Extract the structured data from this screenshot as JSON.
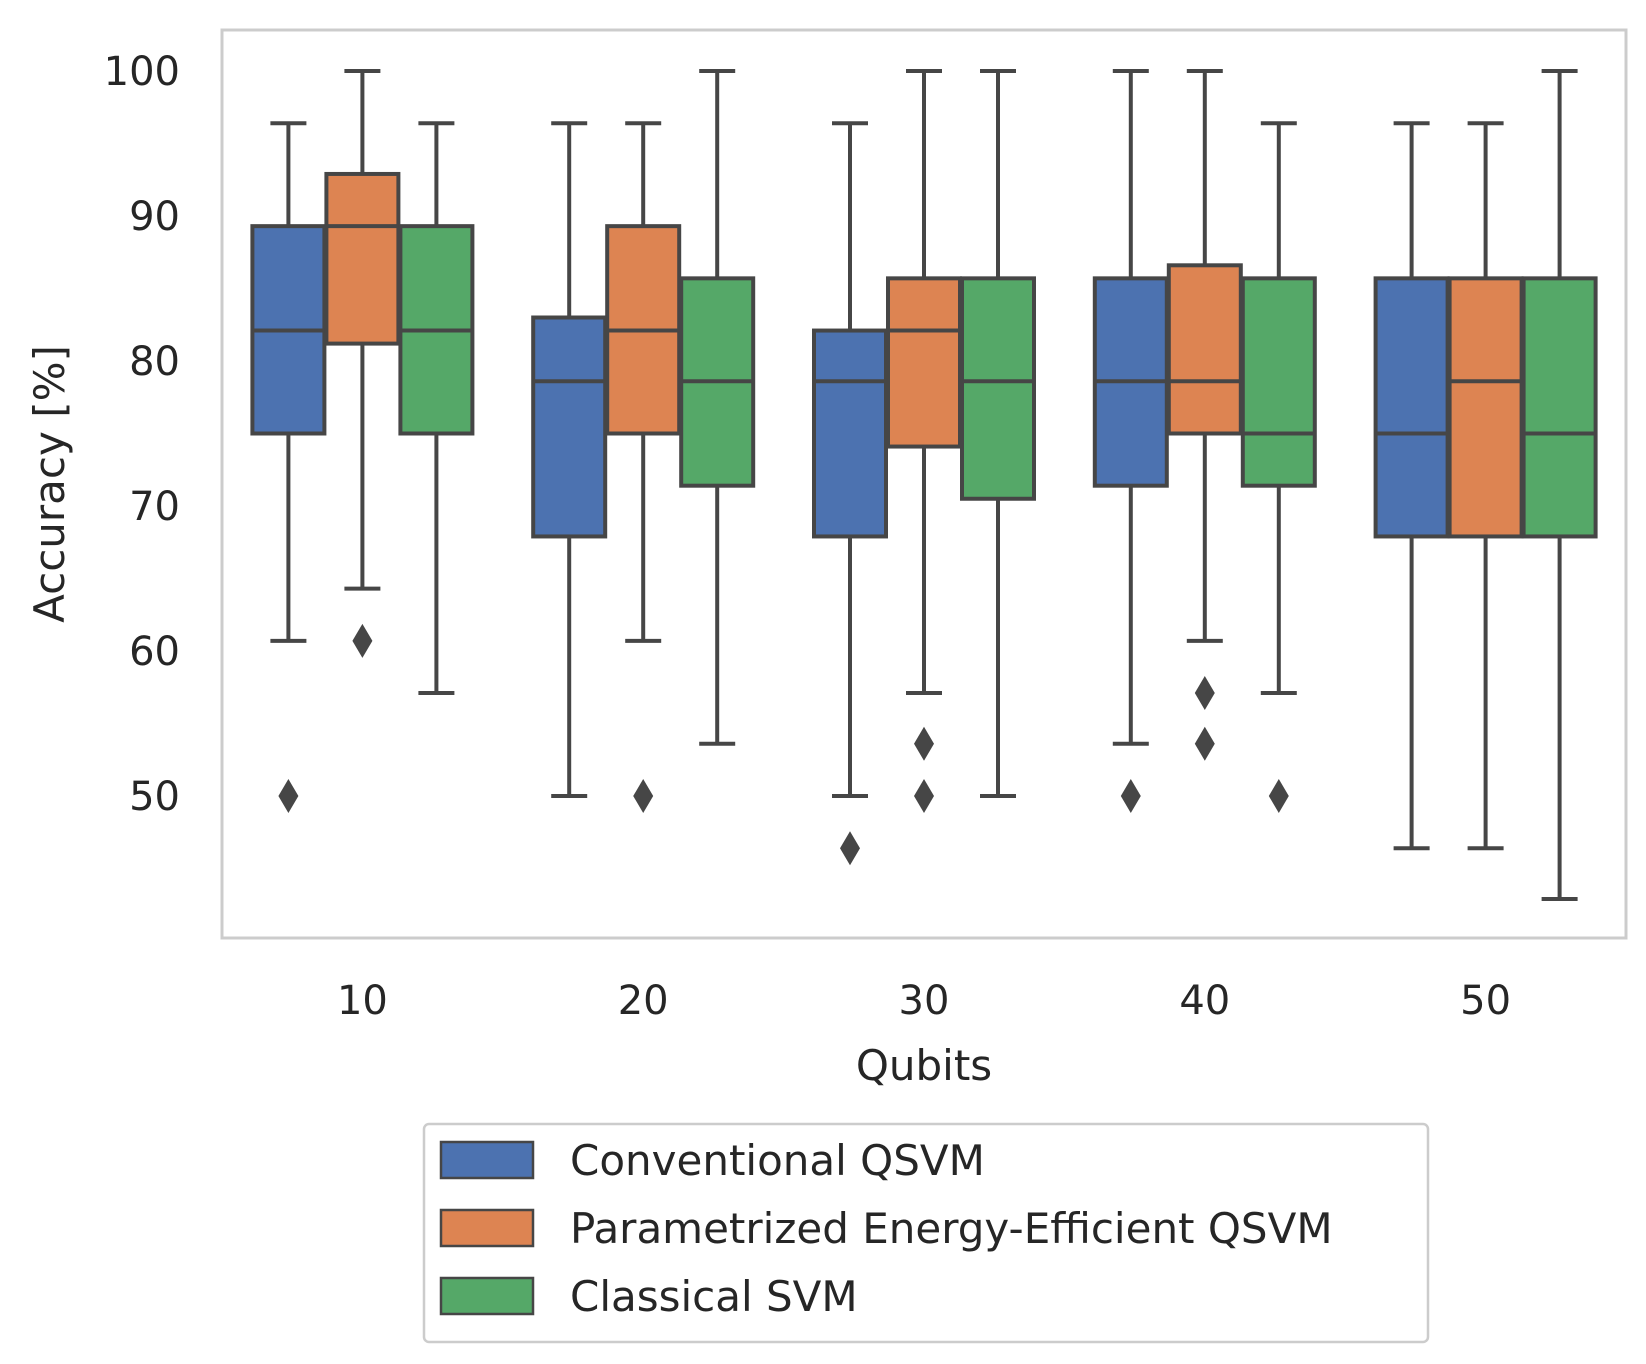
{
  "chart_data": {
    "type": "box",
    "xlabel": "Qubits",
    "ylabel": "Accuracy [%]",
    "ylim": [
      40,
      102.7
    ],
    "yticks": [
      50,
      60,
      70,
      80,
      90,
      100
    ],
    "categories": [
      "10",
      "20",
      "30",
      "40",
      "50"
    ],
    "grid": false,
    "legend_position": "bottom-center, outside plot",
    "series": [
      {
        "name": "Conventional QSVM",
        "color": "#4c72b0",
        "boxes": [
          {
            "whislo": 60.7,
            "q1": 75.0,
            "med": 82.1,
            "q3": 89.3,
            "whishi": 96.4,
            "fliers": [
              50.0
            ]
          },
          {
            "whislo": 50.0,
            "q1": 67.9,
            "med": 78.6,
            "q3": 83.0,
            "whishi": 96.4,
            "fliers": []
          },
          {
            "whislo": 50.0,
            "q1": 67.9,
            "med": 78.6,
            "q3": 82.1,
            "whishi": 96.4,
            "fliers": [
              46.4
            ]
          },
          {
            "whislo": 53.6,
            "q1": 71.4,
            "med": 78.6,
            "q3": 85.7,
            "whishi": 100.0,
            "fliers": [
              50.0
            ]
          },
          {
            "whislo": 46.4,
            "q1": 67.9,
            "med": 75.0,
            "q3": 85.7,
            "whishi": 96.4,
            "fliers": []
          }
        ]
      },
      {
        "name": "Parametrized Energy-Efficient QSVM",
        "color": "#dd8452",
        "boxes": [
          {
            "whislo": 64.3,
            "q1": 81.2,
            "med": 89.3,
            "q3": 92.9,
            "whishi": 100.0,
            "fliers": [
              60.7
            ]
          },
          {
            "whislo": 60.7,
            "q1": 75.0,
            "med": 82.1,
            "q3": 89.3,
            "whishi": 96.4,
            "fliers": [
              50.0
            ]
          },
          {
            "whislo": 57.1,
            "q1": 74.1,
            "med": 82.1,
            "q3": 85.7,
            "whishi": 100.0,
            "fliers": [
              53.6,
              50.0
            ]
          },
          {
            "whislo": 60.7,
            "q1": 75.0,
            "med": 78.6,
            "q3": 86.6,
            "whishi": 100.0,
            "fliers": [
              57.1,
              53.6
            ]
          },
          {
            "whislo": 46.4,
            "q1": 67.9,
            "med": 78.6,
            "q3": 85.7,
            "whishi": 96.4,
            "fliers": []
          }
        ]
      },
      {
        "name": "Classical SVM",
        "color": "#55a868",
        "boxes": [
          {
            "whislo": 57.1,
            "q1": 75.0,
            "med": 82.1,
            "q3": 89.3,
            "whishi": 96.4,
            "fliers": []
          },
          {
            "whislo": 53.6,
            "q1": 71.4,
            "med": 78.6,
            "q3": 85.7,
            "whishi": 100.0,
            "fliers": []
          },
          {
            "whislo": 50.0,
            "q1": 70.5,
            "med": 78.6,
            "q3": 85.7,
            "whishi": 100.0,
            "fliers": []
          },
          {
            "whislo": 57.1,
            "q1": 71.4,
            "med": 75.0,
            "q3": 85.7,
            "whishi": 96.4,
            "fliers": [
              50.0
            ]
          },
          {
            "whislo": 42.9,
            "q1": 67.9,
            "med": 75.0,
            "q3": 85.7,
            "whishi": 100.0,
            "fliers": []
          }
        ]
      }
    ]
  }
}
